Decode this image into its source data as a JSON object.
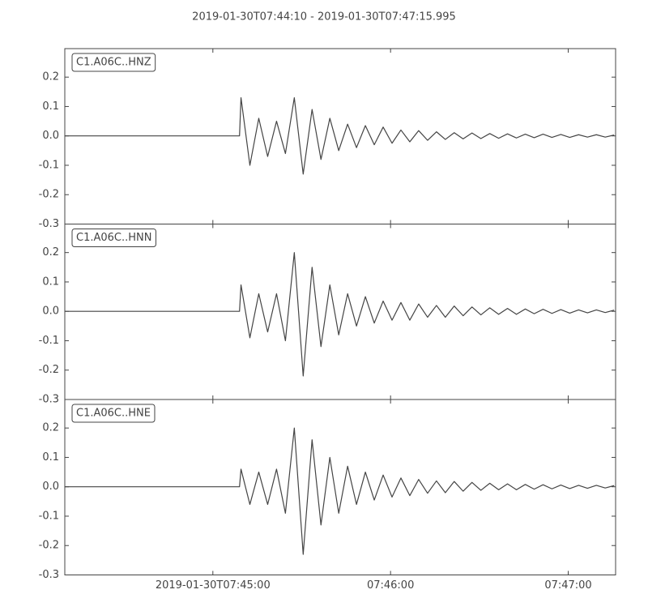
{
  "title": "2019-01-30T07:44:10  -  2019-01-30T07:47:15.995",
  "chart_data": [
    {
      "type": "line",
      "label": "C1.A06C..HNZ",
      "color": "#444444",
      "xlim": [
        0,
        185.995
      ],
      "ylim": [
        -0.3,
        0.297
      ],
      "yticks": [
        -0.3,
        -0.2,
        -0.1,
        {
          "value": 0,
          "label": "0.0"
        },
        0.1,
        0.2
      ],
      "x": [
        0,
        59,
        59.5,
        62.5,
        65.5,
        68.5,
        71.5,
        74.5,
        77.5,
        80.5,
        83.5,
        86.5,
        89.5,
        92.5,
        95.5,
        98.5,
        101.5,
        104.5,
        107.5,
        110.5,
        113.5,
        116.5,
        119.5,
        122.5,
        125.5,
        128.5,
        131.5,
        134.5,
        137.5,
        140.5,
        143.5,
        146.5,
        149.5,
        152.5,
        155.5,
        158.5,
        161.5,
        164.5,
        167.5,
        170.5,
        173.5,
        176.5,
        179.5,
        182.5,
        185.5
      ],
      "values": [
        0,
        0,
        0.13,
        -0.1,
        0.06,
        -0.07,
        0.05,
        -0.06,
        0.13,
        -0.13,
        0.09,
        -0.08,
        0.06,
        -0.05,
        0.04,
        -0.04,
        0.035,
        -0.03,
        0.03,
        -0.025,
        0.02,
        -0.02,
        0.018,
        -0.015,
        0.014,
        -0.012,
        0.011,
        -0.01,
        0.01,
        -0.009,
        0.008,
        -0.008,
        0.007,
        -0.007,
        0.006,
        -0.006,
        0.006,
        -0.005,
        0.005,
        -0.005,
        0.004,
        -0.004,
        0.004,
        -0.004,
        0.003
      ]
    },
    {
      "type": "line",
      "label": "C1.A06C..HNN",
      "color": "#444444",
      "xlim": [
        0,
        185.995
      ],
      "ylim": [
        -0.3,
        0.297
      ],
      "yticks": [
        -0.3,
        -0.2,
        -0.1,
        {
          "value": 0,
          "label": "0.0"
        },
        0.1,
        0.2
      ],
      "x": [
        0,
        59,
        59.5,
        62.5,
        65.5,
        68.5,
        71.5,
        74.5,
        77.5,
        80.5,
        83.5,
        86.5,
        89.5,
        92.5,
        95.5,
        98.5,
        101.5,
        104.5,
        107.5,
        110.5,
        113.5,
        116.5,
        119.5,
        122.5,
        125.5,
        128.5,
        131.5,
        134.5,
        137.5,
        140.5,
        143.5,
        146.5,
        149.5,
        152.5,
        155.5,
        158.5,
        161.5,
        164.5,
        167.5,
        170.5,
        173.5,
        176.5,
        179.5,
        182.5,
        185.5
      ],
      "values": [
        0,
        0,
        0.09,
        -0.09,
        0.06,
        -0.07,
        0.06,
        -0.1,
        0.2,
        -0.22,
        0.15,
        -0.12,
        0.09,
        -0.08,
        0.06,
        -0.05,
        0.05,
        -0.04,
        0.035,
        -0.03,
        0.03,
        -0.03,
        0.025,
        -0.02,
        0.02,
        -0.02,
        0.018,
        -0.015,
        0.015,
        -0.012,
        0.012,
        -0.01,
        0.01,
        -0.01,
        0.008,
        -0.008,
        0.007,
        -0.007,
        0.006,
        -0.006,
        0.005,
        -0.005,
        0.005,
        -0.004,
        0.004
      ]
    },
    {
      "type": "line",
      "label": "C1.A06C..HNE",
      "color": "#444444",
      "xlim": [
        0,
        185.995
      ],
      "ylim": [
        -0.3,
        0.297
      ],
      "yticks": [
        -0.3,
        -0.2,
        -0.1,
        {
          "value": 0,
          "label": "0.0"
        },
        0.1,
        0.2
      ],
      "xticks": [
        {
          "value": 50,
          "label": "2019-01-30T07:45:00"
        },
        {
          "value": 110,
          "label": "07:46:00"
        },
        {
          "value": 170,
          "label": "07:47:00"
        }
      ],
      "x": [
        0,
        59,
        59.5,
        62.5,
        65.5,
        68.5,
        71.5,
        74.5,
        77.5,
        80.5,
        83.5,
        86.5,
        89.5,
        92.5,
        95.5,
        98.5,
        101.5,
        104.5,
        107.5,
        110.5,
        113.5,
        116.5,
        119.5,
        122.5,
        125.5,
        128.5,
        131.5,
        134.5,
        137.5,
        140.5,
        143.5,
        146.5,
        149.5,
        152.5,
        155.5,
        158.5,
        161.5,
        164.5,
        167.5,
        170.5,
        173.5,
        176.5,
        179.5,
        182.5,
        185.5
      ],
      "values": [
        0,
        0,
        0.06,
        -0.06,
        0.05,
        -0.06,
        0.06,
        -0.09,
        0.2,
        -0.23,
        0.16,
        -0.13,
        0.1,
        -0.09,
        0.07,
        -0.06,
        0.05,
        -0.045,
        0.04,
        -0.035,
        0.03,
        -0.03,
        0.025,
        -0.022,
        0.02,
        -0.02,
        0.018,
        -0.015,
        0.015,
        -0.012,
        0.012,
        -0.01,
        0.01,
        -0.01,
        0.008,
        -0.008,
        0.007,
        -0.007,
        0.006,
        -0.006,
        0.005,
        -0.005,
        0.005,
        -0.004,
        0.004
      ]
    }
  ]
}
